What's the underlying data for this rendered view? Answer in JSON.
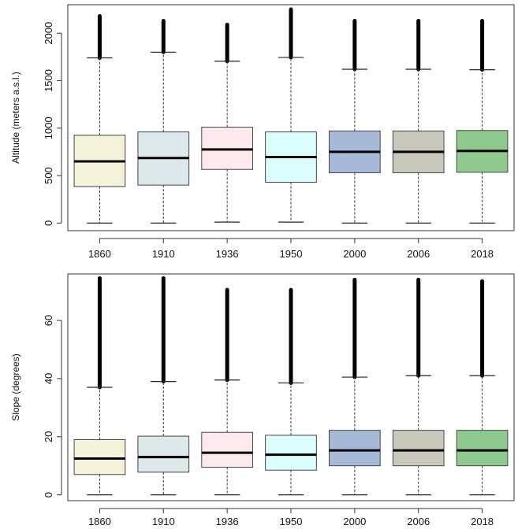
{
  "chart_data": [
    {
      "type": "boxplot",
      "ylabel": "Altitude (meters a.s.l.)",
      "ylim": [
        -80,
        2300
      ],
      "yticks": [
        0,
        500,
        1000,
        1500,
        2000
      ],
      "categories": [
        "1860",
        "1910",
        "1936",
        "1950",
        "2000",
        "2006",
        "2018"
      ],
      "colors": [
        "#f3f3d9",
        "#dde8e8",
        "#fde9ee",
        "#dbffff",
        "#a7b9d8",
        "#c9c9bb",
        "#8ec98e"
      ],
      "boxes": [
        {
          "lower_whisker": 0,
          "q1": 385,
          "median": 650,
          "q3": 925,
          "upper_whisker": 1740,
          "outlier_max": 2180
        },
        {
          "lower_whisker": 0,
          "q1": 400,
          "median": 685,
          "q3": 960,
          "upper_whisker": 1800,
          "outlier_max": 2130
        },
        {
          "lower_whisker": 10,
          "q1": 565,
          "median": 775,
          "q3": 1010,
          "upper_whisker": 1705,
          "outlier_max": 2090
        },
        {
          "lower_whisker": 10,
          "q1": 430,
          "median": 695,
          "q3": 960,
          "upper_whisker": 1745,
          "outlier_max": 2250
        },
        {
          "lower_whisker": 0,
          "q1": 530,
          "median": 750,
          "q3": 970,
          "upper_whisker": 1620,
          "outlier_max": 2130
        },
        {
          "lower_whisker": 0,
          "q1": 530,
          "median": 750,
          "q3": 970,
          "upper_whisker": 1620,
          "outlier_max": 2130
        },
        {
          "lower_whisker": 0,
          "q1": 535,
          "median": 760,
          "q3": 975,
          "upper_whisker": 1615,
          "outlier_max": 2130
        }
      ]
    },
    {
      "type": "boxplot",
      "ylabel": "Slope (degrees)",
      "ylim": [
        -2,
        76
      ],
      "yticks": [
        0,
        20,
        40,
        60
      ],
      "categories": [
        "1860",
        "1910",
        "1936",
        "1950",
        "2000",
        "2006",
        "2018"
      ],
      "colors": [
        "#f3f3d9",
        "#dde8e8",
        "#fde9ee",
        "#dbffff",
        "#a7b9d8",
        "#c9c9bb",
        "#8ec98e"
      ],
      "boxes": [
        {
          "lower_whisker": 0,
          "q1": 7,
          "median": 12.5,
          "q3": 19,
          "upper_whisker": 37,
          "outlier_max": 74.5
        },
        {
          "lower_whisker": 0,
          "q1": 7.8,
          "median": 13,
          "q3": 20.2,
          "upper_whisker": 39,
          "outlier_max": 74.5
        },
        {
          "lower_whisker": 0,
          "q1": 9.5,
          "median": 14.5,
          "q3": 21.5,
          "upper_whisker": 39.5,
          "outlier_max": 70.5
        },
        {
          "lower_whisker": 0,
          "q1": 8.5,
          "median": 13.8,
          "q3": 20.5,
          "upper_whisker": 38.5,
          "outlier_max": 70.5
        },
        {
          "lower_whisker": 0,
          "q1": 10,
          "median": 15.3,
          "q3": 22.2,
          "upper_whisker": 40.5,
          "outlier_max": 74
        },
        {
          "lower_whisker": 0,
          "q1": 10,
          "median": 15.3,
          "q3": 22.2,
          "upper_whisker": 41,
          "outlier_max": 74
        },
        {
          "lower_whisker": 0,
          "q1": 10,
          "median": 15.3,
          "q3": 22.2,
          "upper_whisker": 41,
          "outlier_max": 73.5
        }
      ]
    }
  ]
}
